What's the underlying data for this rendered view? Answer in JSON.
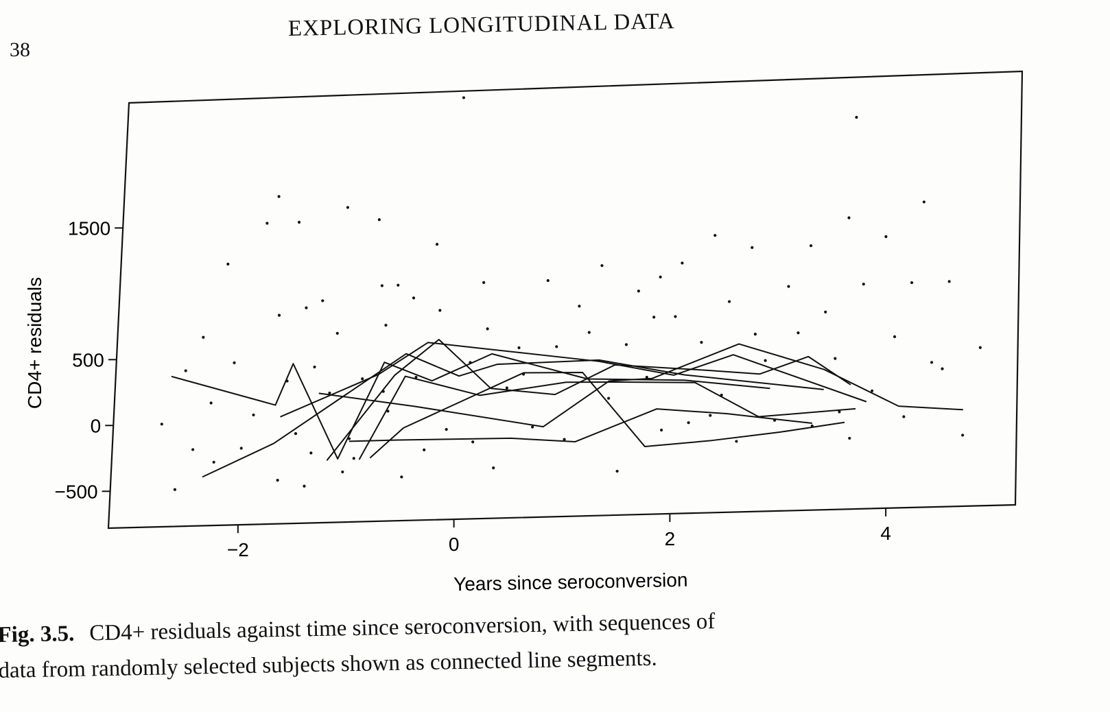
{
  "page": {
    "number": "38",
    "running_head": "EXPLORING LONGITUDINAL DATA"
  },
  "caption": {
    "label": "Fig. 3.5.",
    "line1": "CD4+ residuals against time since seroconversion, with sequences of",
    "line2": "data from randomly selected subjects shown as connected line segments."
  },
  "chart_data": {
    "type": "scatter",
    "xlabel": "Years since seroconversion",
    "ylabel": "CD4+ residuals",
    "xlim": [
      -3.2,
      5.2
    ],
    "ylim": [
      -780,
      2450
    ],
    "xticks": [
      -2,
      0,
      2,
      4
    ],
    "yticks": [
      -500,
      0,
      500,
      1500
    ],
    "xtick_labels": [
      "−2",
      "0",
      "2",
      "4"
    ],
    "ytick_labels": [
      "−500",
      "0",
      "500",
      "1500"
    ],
    "grid": false,
    "points": [
      [
        -2.75,
        0
      ],
      [
        -2.6,
        -500
      ],
      [
        -2.55,
        400
      ],
      [
        -2.4,
        650
      ],
      [
        -2.3,
        150
      ],
      [
        -2.25,
        -300
      ],
      [
        -2.2,
        1200
      ],
      [
        -2.1,
        450
      ],
      [
        -2.0,
        -200
      ],
      [
        -1.9,
        50
      ],
      [
        -1.85,
        1500
      ],
      [
        -1.75,
        1700
      ],
      [
        -1.7,
        800
      ],
      [
        -1.65,
        -450
      ],
      [
        -1.6,
        300
      ],
      [
        -1.55,
        1500
      ],
      [
        -1.5,
        -100
      ],
      [
        -1.45,
        850
      ],
      [
        -1.35,
        -250
      ],
      [
        -1.3,
        900
      ],
      [
        -1.2,
        200
      ],
      [
        -1.15,
        650
      ],
      [
        -1.1,
        1600
      ],
      [
        -1.05,
        -400
      ],
      [
        -1.0,
        -150
      ],
      [
        -0.9,
        300
      ],
      [
        -0.8,
        1500
      ],
      [
        -0.75,
        1000
      ],
      [
        -0.7,
        700
      ],
      [
        -0.65,
        50
      ],
      [
        -0.6,
        1000
      ],
      [
        -0.5,
        -450
      ],
      [
        -0.45,
        900
      ],
      [
        -0.4,
        300
      ],
      [
        -0.3,
        -250
      ],
      [
        -0.25,
        1300
      ],
      [
        -0.2,
        800
      ],
      [
        -0.1,
        -100
      ],
      [
        -0.05,
        2400
      ],
      [
        0.1,
        400
      ],
      [
        0.2,
        1000
      ],
      [
        0.25,
        650
      ],
      [
        0.35,
        -400
      ],
      [
        0.45,
        200
      ],
      [
        0.55,
        500
      ],
      [
        0.7,
        -100
      ],
      [
        0.8,
        1000
      ],
      [
        0.9,
        500
      ],
      [
        1.0,
        -200
      ],
      [
        1.1,
        800
      ],
      [
        1.2,
        600
      ],
      [
        1.3,
        1100
      ],
      [
        1.4,
        100
      ],
      [
        1.5,
        -450
      ],
      [
        1.55,
        500
      ],
      [
        1.65,
        900
      ],
      [
        1.75,
        250
      ],
      [
        1.85,
        1000
      ],
      [
        1.9,
        -150
      ],
      [
        2.0,
        700
      ],
      [
        2.05,
        1100
      ],
      [
        2.15,
        -100
      ],
      [
        2.25,
        500
      ],
      [
        2.35,
        1300
      ],
      [
        2.45,
        100
      ],
      [
        2.5,
        800
      ],
      [
        2.6,
        -250
      ],
      [
        2.7,
        1200
      ],
      [
        2.75,
        550
      ],
      [
        2.85,
        350
      ],
      [
        2.95,
        -100
      ],
      [
        3.05,
        900
      ],
      [
        3.15,
        550
      ],
      [
        3.25,
        1200
      ],
      [
        3.3,
        -150
      ],
      [
        3.4,
        700
      ],
      [
        3.5,
        350
      ],
      [
        3.6,
        1400
      ],
      [
        3.65,
        -250
      ],
      [
        3.75,
        900
      ],
      [
        3.85,
        100
      ],
      [
        3.95,
        1250
      ],
      [
        4.05,
        500
      ],
      [
        4.15,
        -100
      ],
      [
        4.2,
        900
      ],
      [
        4.3,
        1500
      ],
      [
        4.4,
        300
      ],
      [
        4.55,
        900
      ],
      [
        4.7,
        -250
      ],
      [
        4.85,
        400
      ],
      [
        3.65,
        2150
      ],
      [
        -1.35,
        400
      ],
      [
        -0.95,
        -300
      ],
      [
        0.15,
        -200
      ],
      [
        0.6,
        300
      ],
      [
        1.8,
        700
      ],
      [
        2.35,
        -50
      ],
      [
        3.55,
        -50
      ],
      [
        4.5,
        250
      ],
      [
        -2.45,
        -200
      ],
      [
        -1.4,
        -500
      ],
      [
        -0.7,
        200
      ]
    ],
    "series": [
      {
        "x": [
          -2.68,
          -1.7,
          -1.55,
          -1.1,
          -0.7,
          -0.25,
          0.3,
          1.2,
          2.1,
          2.9
        ],
        "y": [
          360,
          120,
          430,
          -300,
          420,
          270,
          460,
          250,
          220,
          140
        ]
      },
      {
        "x": [
          -2.35,
          -1.7,
          -0.5,
          0.0,
          0.35,
          1.3,
          2.1,
          3.4
        ],
        "y": [
          -410,
          -170,
          480,
          300,
          380,
          390,
          260,
          120
        ]
      },
      {
        "x": [
          -1.65,
          -0.75,
          -0.3,
          1.3,
          2.0,
          2.55,
          3.8
        ],
        "y": [
          30,
          330,
          560,
          380,
          260,
          400,
          20
        ]
      },
      {
        "x": [
          -1.2,
          -0.6,
          -0.2,
          0.3,
          0.9,
          1.45,
          2.3,
          2.8,
          3.25,
          3.65
        ],
        "y": [
          -310,
          320,
          580,
          200,
          140,
          350,
          290,
          250,
          370,
          150
        ]
      },
      {
        "x": [
          -1.0,
          -0.55,
          0.5,
          1.1,
          1.85,
          2.5,
          3.3
        ],
        "y": [
          -170,
          -170,
          -180,
          -220,
          10,
          -40,
          -130
        ]
      },
      {
        "x": [
          -1.3,
          -0.4,
          0.8,
          1.4,
          1.8,
          2.6,
          3.4,
          4.1,
          4.7
        ],
        "y": [
          200,
          80,
          -100,
          230,
          240,
          480,
          270,
          -20,
          -60
        ]
      },
      {
        "x": [
          -0.8,
          -0.5,
          0.6,
          1.15,
          1.75,
          2.35,
          3.0,
          3.6
        ],
        "y": [
          -300,
          -80,
          310,
          300,
          -270,
          -240,
          -190,
          -130
        ]
      },
      {
        "x": [
          -0.9,
          -0.5,
          0.2,
          1.0,
          1.5,
          2.2,
          2.8,
          3.7
        ],
        "y": [
          -310,
          310,
          150,
          230,
          220,
          200,
          -70,
          -30
        ]
      }
    ]
  }
}
